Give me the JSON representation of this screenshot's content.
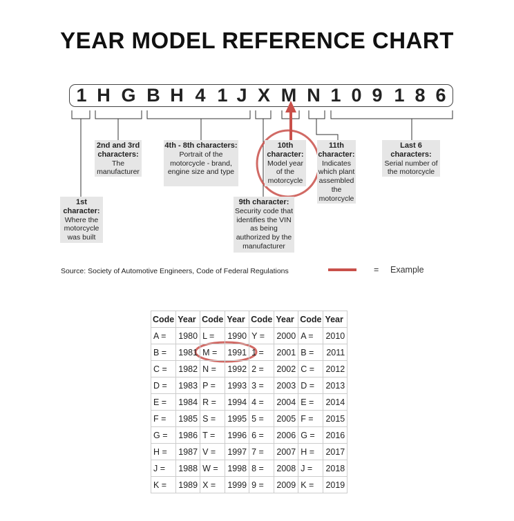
{
  "title": "YEAR MODEL REFERENCE CHART",
  "vin": [
    "1",
    "H",
    "G",
    "B",
    "H",
    "4",
    "1",
    "J",
    "X",
    "M",
    "N",
    "1",
    "0",
    "9",
    "1",
    "8",
    "6"
  ],
  "labels": [
    {
      "head": "1st character:",
      "body": "Where the motorcycle was built"
    },
    {
      "head": "2nd and 3rd characters:",
      "body": "The manufacturer"
    },
    {
      "head": "4th - 8th characters:",
      "body": "Portrait of the motorcycle - brand, engine size and type"
    },
    {
      "head": "9th character:",
      "body": "Security code that identifies the VIN as being authorized by the manufacturer"
    },
    {
      "head": "10th character:",
      "body": "Model year of the motorcycle"
    },
    {
      "head": "11th character:",
      "body": "Indicates which plant assembled the motorcycle"
    },
    {
      "head": "Last 6 characters:",
      "body": "Serial number of the motorcycle"
    }
  ],
  "source": "Source:  Society of Automotive Engineers, Code of Federal Regulations",
  "legend": {
    "eq": "=",
    "label": "Example",
    "color": "#c9504a"
  },
  "table": {
    "headers": [
      "Code",
      "Year",
      "Code",
      "Year",
      "Code",
      "Year",
      "Code",
      "Year"
    ],
    "rows": [
      [
        "A =",
        "1980",
        "L =",
        "1990",
        "Y =",
        "2000",
        "A =",
        "2010"
      ],
      [
        "B =",
        "1981",
        "M =",
        "1991",
        "1 =",
        "2001",
        "B =",
        "2011"
      ],
      [
        "C =",
        "1982",
        "N =",
        "1992",
        "2 =",
        "2002",
        "C =",
        "2012"
      ],
      [
        "D =",
        "1983",
        "P =",
        "1993",
        "3 =",
        "2003",
        "D =",
        "2013"
      ],
      [
        "E =",
        "1984",
        "R =",
        "1994",
        "4 =",
        "2004",
        "E =",
        "2014"
      ],
      [
        "F =",
        "1985",
        "S =",
        "1995",
        "5 =",
        "2005",
        "F =",
        "2015"
      ],
      [
        "G =",
        "1986",
        "T =",
        "1996",
        "6 =",
        "2006",
        "G =",
        "2016"
      ],
      [
        "H =",
        "1987",
        "V =",
        "1997",
        "7 =",
        "2007",
        "H =",
        "2017"
      ],
      [
        "J =",
        "1988",
        "W =",
        "1998",
        "8 =",
        "2008",
        "J =",
        "2018"
      ],
      [
        "K =",
        "1989",
        "X =",
        "1999",
        "9 =",
        "2009",
        "K =",
        "2019"
      ]
    ]
  }
}
